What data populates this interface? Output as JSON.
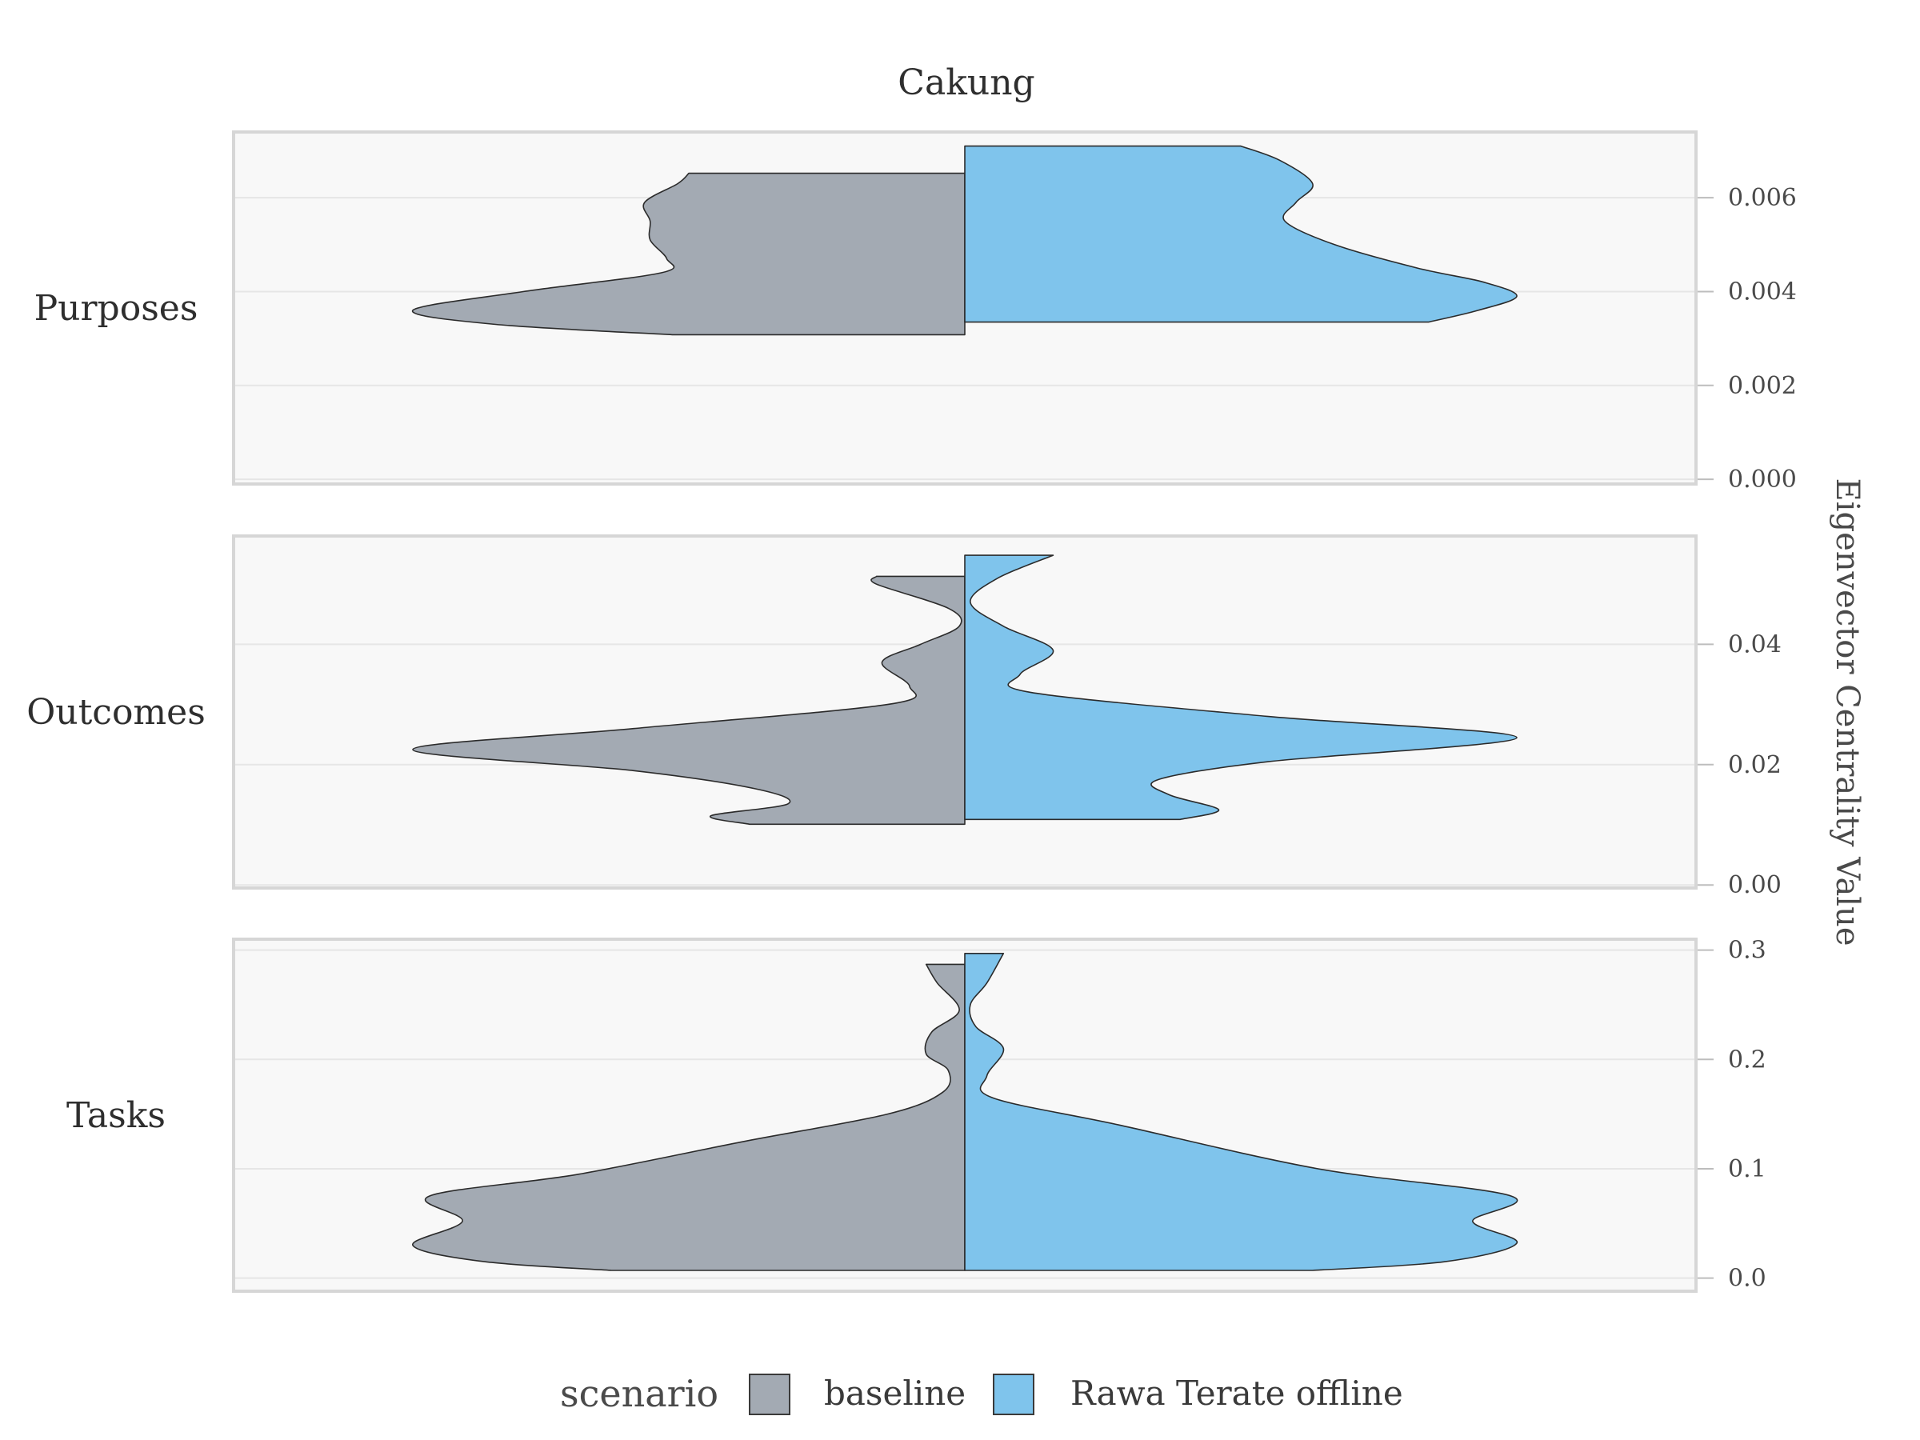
{
  "chart_data": {
    "type": "violin",
    "title": "Cakung",
    "ylabel": "Eigenvector Centrality Value",
    "legend": {
      "title": "scenario",
      "position": "bottom",
      "items": [
        {
          "label": "baseline",
          "color": "#a3aab3"
        },
        {
          "label": "Rawa Terate offline",
          "color": "#7fc4ec"
        }
      ]
    },
    "grid": true,
    "panels": [
      {
        "label": "Purposes",
        "ylim": [
          -0.0001,
          0.0074
        ],
        "ticks": [
          0.0,
          0.002,
          0.004,
          0.006
        ],
        "tick_labels": [
          "0.000",
          "0.002",
          "0.004",
          "0.006"
        ],
        "series": [
          {
            "name": "baseline",
            "side": "left",
            "profile": [
              [
                0.00308,
                0.53
              ],
              [
                0.0033,
                0.85
              ],
              [
                0.0036,
                1.0
              ],
              [
                0.004,
                0.8
              ],
              [
                0.0044,
                0.55
              ],
              [
                0.0047,
                0.54
              ],
              [
                0.0051,
                0.57
              ],
              [
                0.0055,
                0.57
              ],
              [
                0.0059,
                0.58
              ],
              [
                0.0063,
                0.52
              ],
              [
                0.00652,
                0.5
              ]
            ]
          },
          {
            "name": "Rawa Terate offline",
            "side": "right",
            "profile": [
              [
                0.00335,
                0.84
              ],
              [
                0.0036,
                0.93
              ],
              [
                0.0039,
                1.0
              ],
              [
                0.0042,
                0.94
              ],
              [
                0.0045,
                0.82
              ],
              [
                0.005,
                0.67
              ],
              [
                0.0055,
                0.58
              ],
              [
                0.0059,
                0.6
              ],
              [
                0.0063,
                0.63
              ],
              [
                0.0068,
                0.57
              ],
              [
                0.0071,
                0.5
              ]
            ]
          }
        ]
      },
      {
        "label": "Outcomes",
        "ylim": [
          -0.0005,
          0.058
        ],
        "ticks": [
          0.0,
          0.02,
          0.04
        ],
        "tick_labels": [
          "0.00",
          "0.02",
          "0.04"
        ],
        "series": [
          {
            "name": "baseline",
            "side": "left",
            "profile": [
              [
                0.0101,
                0.39
              ],
              [
                0.0115,
                0.46
              ],
              [
                0.0135,
                0.32
              ],
              [
                0.016,
                0.38
              ],
              [
                0.019,
                0.6
              ],
              [
                0.0225,
                1.0
              ],
              [
                0.026,
                0.6
              ],
              [
                0.03,
                0.14
              ],
              [
                0.033,
                0.1
              ],
              [
                0.037,
                0.15
              ],
              [
                0.04,
                0.08
              ],
              [
                0.043,
                0.01
              ],
              [
                0.046,
                0.03
              ],
              [
                0.05,
                0.16
              ],
              [
                0.0513,
                0.16
              ]
            ]
          },
          {
            "name": "Rawa Terate offline",
            "side": "right",
            "profile": [
              [
                0.0109,
                0.39
              ],
              [
                0.0125,
                0.46
              ],
              [
                0.015,
                0.37
              ],
              [
                0.0175,
                0.35
              ],
              [
                0.0205,
                0.55
              ],
              [
                0.0245,
                1.0
              ],
              [
                0.028,
                0.55
              ],
              [
                0.032,
                0.12
              ],
              [
                0.035,
                0.1
              ],
              [
                0.039,
                0.16
              ],
              [
                0.043,
                0.07
              ],
              [
                0.047,
                0.01
              ],
              [
                0.051,
                0.06
              ],
              [
                0.0548,
                0.16
              ]
            ]
          }
        ]
      },
      {
        "label": "Tasks",
        "ylim": [
          -0.012,
          0.31
        ],
        "ticks": [
          0.0,
          0.1,
          0.2,
          0.3
        ],
        "tick_labels": [
          "0.0",
          "0.1",
          "0.2",
          "0.3"
        ],
        "series": [
          {
            "name": "baseline",
            "side": "left",
            "profile": [
              [
                0.007,
                0.64
              ],
              [
                0.015,
                0.87
              ],
              [
                0.03,
                1.0
              ],
              [
                0.052,
                0.91
              ],
              [
                0.075,
                0.97
              ],
              [
                0.095,
                0.7
              ],
              [
                0.125,
                0.4
              ],
              [
                0.15,
                0.14
              ],
              [
                0.17,
                0.04
              ],
              [
                0.19,
                0.03
              ],
              [
                0.205,
                0.07
              ],
              [
                0.225,
                0.06
              ],
              [
                0.245,
                0.01
              ],
              [
                0.27,
                0.05
              ],
              [
                0.287,
                0.07
              ]
            ]
          },
          {
            "name": "Rawa Terate offline",
            "side": "right",
            "profile": [
              [
                0.007,
                0.63
              ],
              [
                0.015,
                0.87
              ],
              [
                0.032,
                1.0
              ],
              [
                0.052,
                0.92
              ],
              [
                0.075,
                0.99
              ],
              [
                0.1,
                0.64
              ],
              [
                0.14,
                0.28
              ],
              [
                0.165,
                0.05
              ],
              [
                0.185,
                0.04
              ],
              [
                0.21,
                0.07
              ],
              [
                0.23,
                0.02
              ],
              [
                0.25,
                0.01
              ],
              [
                0.27,
                0.04
              ],
              [
                0.297,
                0.07
              ]
            ]
          }
        ]
      }
    ]
  }
}
